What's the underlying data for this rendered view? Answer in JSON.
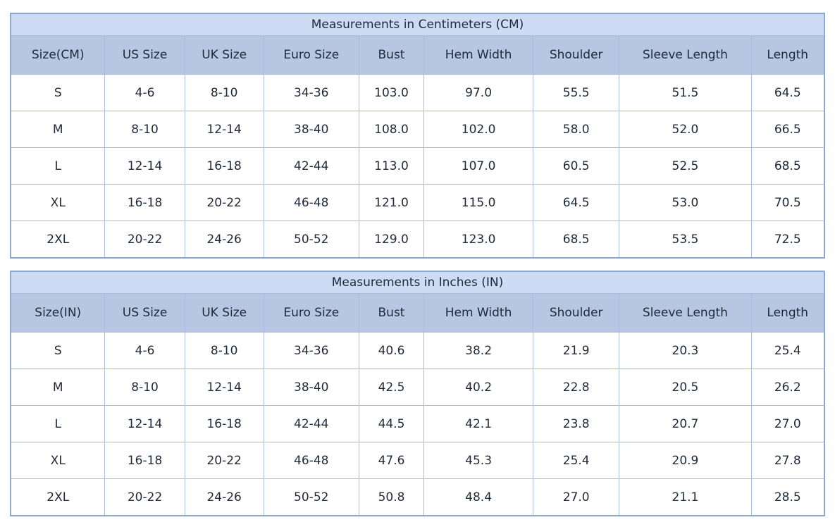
{
  "colors": {
    "title_row_bg": "#cddcf4",
    "header_row_bg": "#b7c7e2",
    "grid_border": "#a9bddb",
    "outer_border": "#8ea8cb",
    "text": "#1e2a3a",
    "cell_bg": "#ffffff"
  },
  "chart_data": [
    {
      "type": "table",
      "title": "Measurements in Centimeters (CM)",
      "columns": [
        "Size(CM)",
        "US Size",
        "UK Size",
        "Euro Size",
        "Bust",
        "Hem Width",
        "Shoulder",
        "Sleeve Length",
        "Length"
      ],
      "rows": [
        [
          "S",
          "4-6",
          "8-10",
          "34-36",
          "103.0",
          "97.0",
          "55.5",
          "51.5",
          "64.5"
        ],
        [
          "M",
          "8-10",
          "12-14",
          "38-40",
          "108.0",
          "102.0",
          "58.0",
          "52.0",
          "66.5"
        ],
        [
          "L",
          "12-14",
          "16-18",
          "42-44",
          "113.0",
          "107.0",
          "60.5",
          "52.5",
          "68.5"
        ],
        [
          "XL",
          "16-18",
          "20-22",
          "46-48",
          "121.0",
          "115.0",
          "64.5",
          "53.0",
          "70.5"
        ],
        [
          "2XL",
          "20-22",
          "24-26",
          "50-52",
          "129.0",
          "123.0",
          "68.5",
          "53.5",
          "72.5"
        ]
      ]
    },
    {
      "type": "table",
      "title": "Measurements in Inches (IN)",
      "columns": [
        "Size(IN)",
        "US Size",
        "UK Size",
        "Euro Size",
        "Bust",
        "Hem Width",
        "Shoulder",
        "Sleeve Length",
        "Length"
      ],
      "rows": [
        [
          "S",
          "4-6",
          "8-10",
          "34-36",
          "40.6",
          "38.2",
          "21.9",
          "20.3",
          "25.4"
        ],
        [
          "M",
          "8-10",
          "12-14",
          "38-40",
          "42.5",
          "40.2",
          "22.8",
          "20.5",
          "26.2"
        ],
        [
          "L",
          "12-14",
          "16-18",
          "42-44",
          "44.5",
          "42.1",
          "23.8",
          "20.7",
          "27.0"
        ],
        [
          "XL",
          "16-18",
          "20-22",
          "46-48",
          "47.6",
          "45.3",
          "25.4",
          "20.9",
          "27.8"
        ],
        [
          "2XL",
          "20-22",
          "24-26",
          "50-52",
          "50.8",
          "48.4",
          "27.0",
          "21.1",
          "28.5"
        ]
      ]
    }
  ]
}
